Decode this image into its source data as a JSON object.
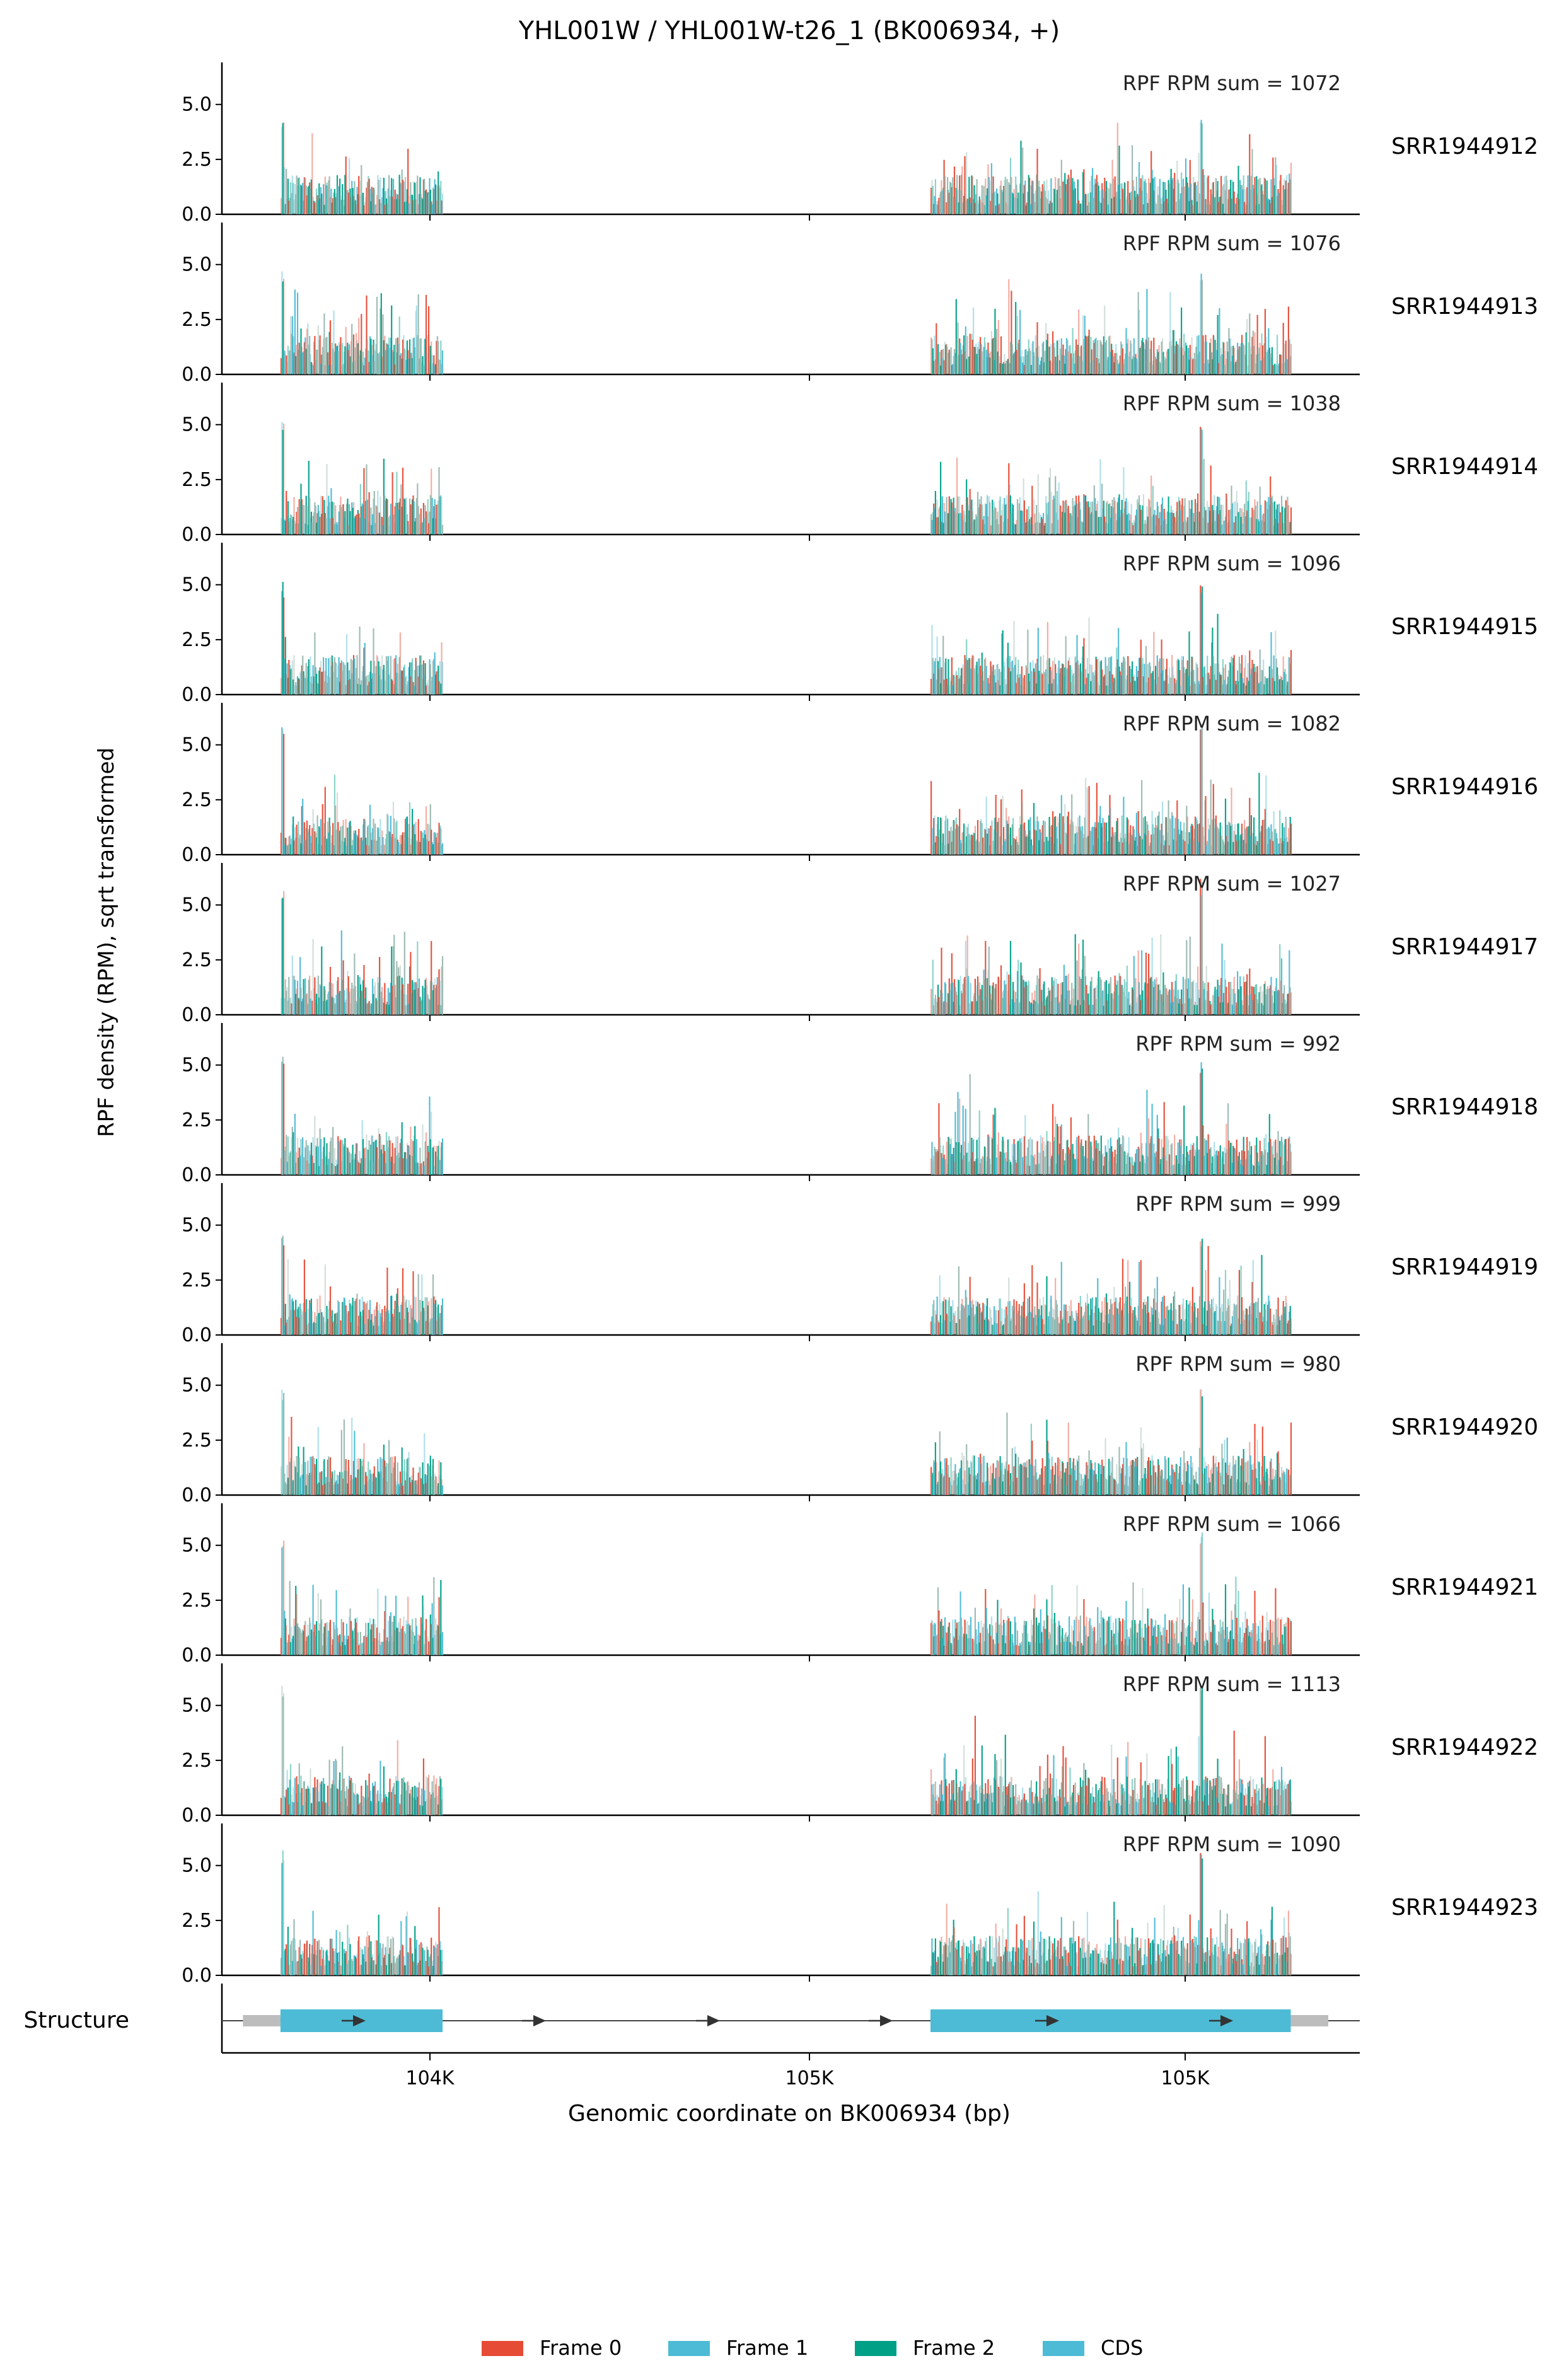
{
  "chart_data": {
    "type": "bar",
    "title": "YHL001W / YHL001W-t26_1 (BK006934, +)",
    "ylabel": "RPF density (RPM), sqrt transformed",
    "xlabel": "Genomic coordinate on BK006934 (bp)",
    "ylim": [
      0,
      6.8
    ],
    "yticks": [
      "0.0",
      "2.5",
      "5.0"
    ],
    "x_tick_labels": [
      "104K",
      "105K",
      "105K"
    ],
    "x_range_bp": [
      104386,
      105902
    ],
    "cds_segments_bp": [
      [
        104464,
        104680
      ],
      [
        105330,
        105810
      ]
    ],
    "utr_segments_bp": [
      [
        104414,
        104464
      ],
      [
        105810,
        105860
      ]
    ],
    "structure_label": "Structure",
    "legend": [
      {
        "label": "Frame 0",
        "color": "#e64b35"
      },
      {
        "label": "Frame 1",
        "color": "#4dbbd5"
      },
      {
        "label": "Frame 2",
        "color": "#00a087"
      },
      {
        "label": "CDS",
        "color": "#4dbbd5"
      }
    ],
    "samples": [
      {
        "name": "SRR1944912",
        "rpm_sum_label": "RPF RPM sum = 1072",
        "seed": 11,
        "peak": 4.6
      },
      {
        "name": "SRR1944913",
        "rpm_sum_label": "RPF RPM sum = 1076",
        "seed": 23,
        "peak": 4.9
      },
      {
        "name": "SRR1944914",
        "rpm_sum_label": "RPF RPM sum = 1038",
        "seed": 37,
        "peak": 5.5
      },
      {
        "name": "SRR1944915",
        "rpm_sum_label": "RPF RPM sum = 1096",
        "seed": 41,
        "peak": 5.2
      },
      {
        "name": "SRR1944916",
        "rpm_sum_label": "RPF RPM sum = 1082",
        "seed": 53,
        "peak": 6.3
      },
      {
        "name": "SRR1944917",
        "rpm_sum_label": "RPF RPM sum = 1027",
        "seed": 67,
        "peak": 6.2
      },
      {
        "name": "SRR1944918",
        "rpm_sum_label": "RPF RPM sum = 992",
        "seed": 71,
        "peak": 5.4
      },
      {
        "name": "SRR1944919",
        "rpm_sum_label": "RPF RPM sum = 999",
        "seed": 83,
        "peak": 4.6
      },
      {
        "name": "SRR1944920",
        "rpm_sum_label": "RPF RPM sum = 980",
        "seed": 97,
        "peak": 4.9
      },
      {
        "name": "SRR1944921",
        "rpm_sum_label": "RPF RPM sum = 1066",
        "seed": 101,
        "peak": 5.6
      },
      {
        "name": "SRR1944922",
        "rpm_sum_label": "RPF RPM sum = 1113",
        "seed": 113,
        "peak": 5.9
      },
      {
        "name": "SRR1944923",
        "rpm_sum_label": "RPF RPM sum = 1090",
        "seed": 127,
        "peak": 5.9
      }
    ]
  }
}
